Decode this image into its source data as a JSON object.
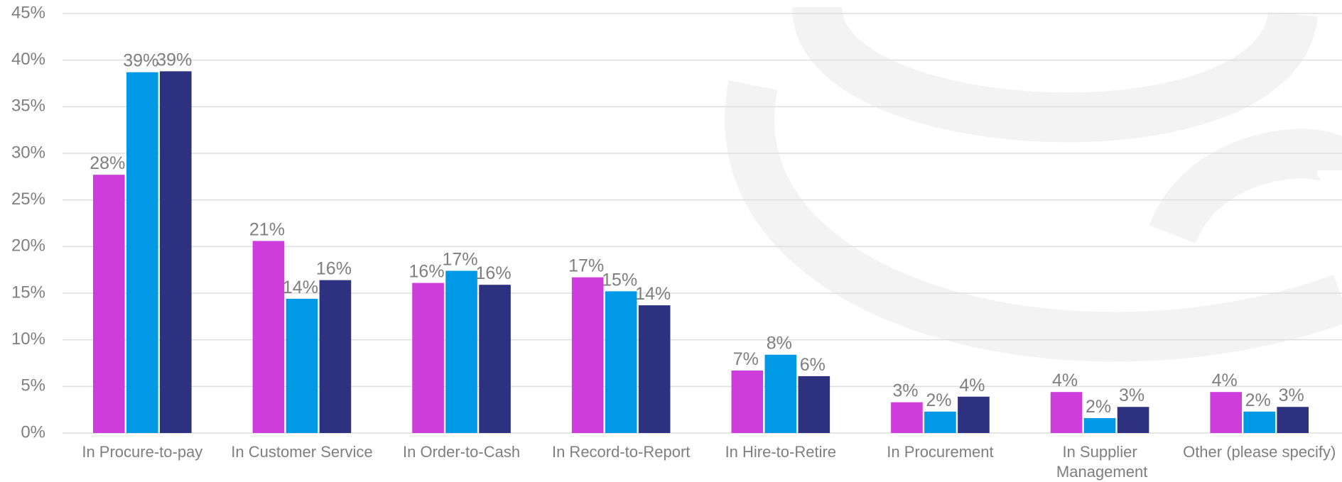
{
  "chart_data": {
    "type": "bar",
    "categories": [
      "In Procure-to-pay",
      "In Customer Service",
      "In Order-to-Cash",
      "In Record-to-Report",
      "In Hire-to-Retire",
      "In Procurement",
      "In Supplier Management",
      "Other (please specify)"
    ],
    "series": [
      {
        "color": "#cc3ddb",
        "values": [
          27.7,
          20.6,
          16.1,
          16.7,
          6.7,
          3.3,
          4.4,
          4.4
        ],
        "value_labels": [
          "28%",
          "21%",
          "16%",
          "17%",
          "7%",
          "3%",
          "4%",
          "4%"
        ]
      },
      {
        "color": "#0099e6",
        "values": [
          38.7,
          14.4,
          17.4,
          15.2,
          8.4,
          2.3,
          1.6,
          2.3
        ],
        "value_labels": [
          "39%",
          "14%",
          "17%",
          "15%",
          "8%",
          "2%",
          "2%",
          "2%"
        ]
      },
      {
        "color": "#2e3080",
        "values": [
          38.8,
          16.4,
          15.9,
          13.7,
          6.1,
          3.9,
          2.8,
          2.8
        ],
        "value_labels": [
          "39%",
          "16%",
          "16%",
          "14%",
          "6%",
          "4%",
          "3%",
          "3%"
        ]
      }
    ],
    "ylim": [
      0,
      45
    ],
    "yticks": [
      {
        "value": 0,
        "label": "0%"
      },
      {
        "value": 5,
        "label": "5%"
      },
      {
        "value": 10,
        "label": "10%"
      },
      {
        "value": 15,
        "label": "15%"
      },
      {
        "value": 20,
        "label": "20%"
      },
      {
        "value": 25,
        "label": "25%"
      },
      {
        "value": 30,
        "label": "30%"
      },
      {
        "value": 35,
        "label": "35%"
      },
      {
        "value": 40,
        "label": "40%"
      },
      {
        "value": 45,
        "label": "45%"
      }
    ],
    "grid": true
  }
}
